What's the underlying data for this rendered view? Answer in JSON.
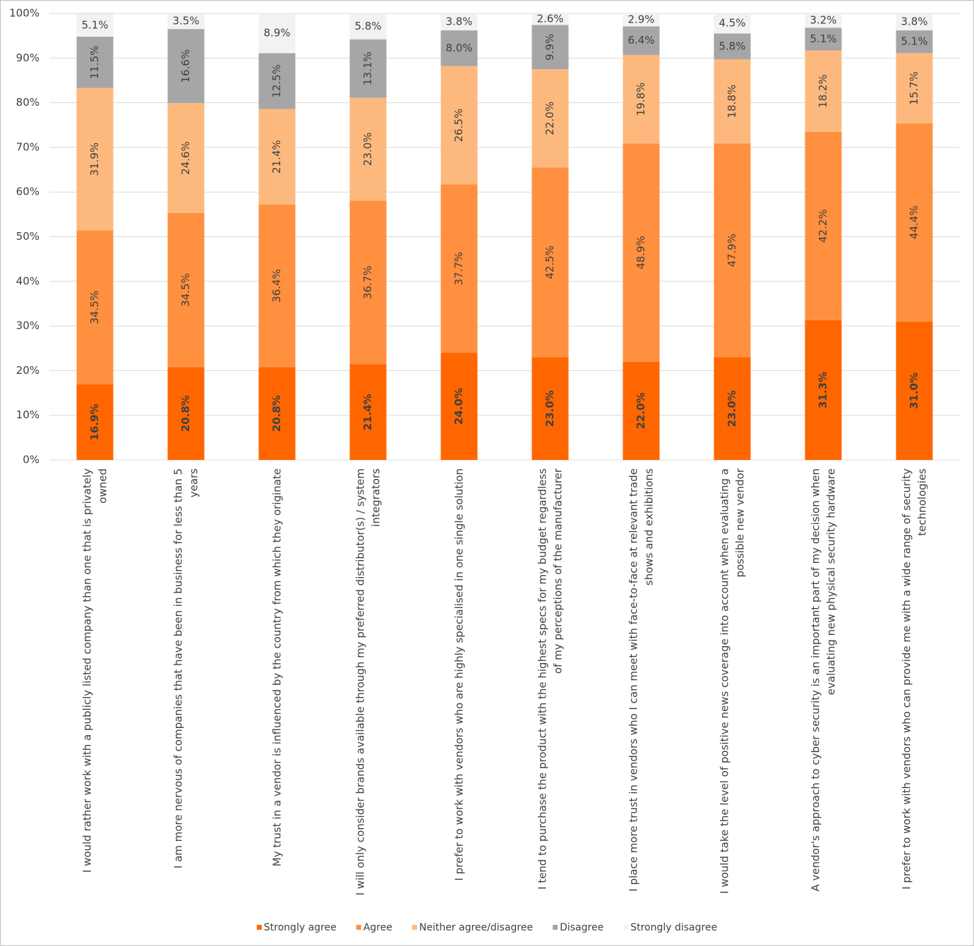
{
  "chart_data": {
    "type": "stacked_bar",
    "categories": [
      "I would rather work with a publicly listed company than one that is privately owned",
      "I am more nervous of companies that have been in business for less than 5 years",
      "My trust in a vendor is influenced by the country from which they originate",
      "I will only consider brands available through my preferred distributor(s) / system integrators",
      "I prefer to work with vendors who are highly specialised in one single solution",
      "I tend to purchase the product with the highest specs for my budget regardless of my perceptions of the manufacturer",
      "I place more trust in vendors who I can meet with face-to-face at relevant trade shows and exhibitions",
      "I would take the level of positive news coverage into account when evaluating a possible new vendor",
      "A vendor's approach to cyber security is an important part of my decision when evaluating new physical security hardware",
      "I prefer to work with vendors who can provide me with a wide range of security technologies"
    ],
    "series": [
      {
        "name": "Strongly agree",
        "color": "#ff6600",
        "values": [
          16.9,
          20.8,
          20.8,
          21.4,
          24.0,
          23.0,
          22.0,
          23.0,
          31.3,
          31.0
        ],
        "value_labels": [
          "16.9%",
          "20.8%",
          "20.8%",
          "21.4%",
          "24.0%",
          "23.0%",
          "22.0%",
          "23.0%",
          "31.3%",
          "31.0%"
        ]
      },
      {
        "name": "Agree",
        "color": "#ff9040",
        "values": [
          34.5,
          34.5,
          36.4,
          36.7,
          37.7,
          42.5,
          48.9,
          47.9,
          42.2,
          44.4
        ],
        "value_labels": [
          "34.5%",
          "34.5%",
          "36.4%",
          "36.7%",
          "37.7%",
          "42.5%",
          "48.9%",
          "47.9%",
          "42.2%",
          "44.4%"
        ]
      },
      {
        "name": "Neither agree/disagree",
        "color": "#fdb97d",
        "values": [
          31.9,
          24.6,
          21.4,
          23.0,
          26.5,
          22.0,
          19.8,
          18.8,
          18.2,
          15.7
        ],
        "value_labels": [
          "31.9%",
          "24.6%",
          "21.4%",
          "23.0%",
          "26.5%",
          "22.0%",
          "19.8%",
          "18.8%",
          "18.2%",
          "15.7%"
        ]
      },
      {
        "name": "Disagree",
        "color": "#a6a6a6",
        "values": [
          11.5,
          16.6,
          12.5,
          13.1,
          8.0,
          9.9,
          6.4,
          5.8,
          5.1,
          5.1
        ],
        "value_labels": [
          "11.5%",
          "16.6%",
          "12.5%",
          "13.1%",
          "8.0%",
          "9.9%",
          "6.4%",
          "5.8%",
          "5.1%",
          "5.1%"
        ]
      },
      {
        "name": "Strongly disagree",
        "color": "#f2f2f2",
        "values": [
          5.1,
          3.5,
          8.9,
          5.8,
          3.8,
          2.6,
          2.9,
          4.5,
          3.2,
          3.8
        ],
        "value_labels": [
          "5.1%",
          "3.5%",
          "8.9%",
          "5.8%",
          "3.8%",
          "2.6%",
          "2.9%",
          "4.5%",
          "3.2%",
          "3.8%"
        ]
      }
    ],
    "ylim": [
      0,
      100
    ],
    "yticks": [
      {
        "value": 0,
        "label": "0%"
      },
      {
        "value": 10,
        "label": "10%"
      },
      {
        "value": 20,
        "label": "20%"
      },
      {
        "value": 30,
        "label": "30%"
      },
      {
        "value": 40,
        "label": "40%"
      },
      {
        "value": 50,
        "label": "50%"
      },
      {
        "value": 60,
        "label": "60%"
      },
      {
        "value": 70,
        "label": "70%"
      },
      {
        "value": 80,
        "label": "80%"
      },
      {
        "value": 90,
        "label": "90%"
      },
      {
        "value": 100,
        "label": "100%"
      }
    ],
    "grid": true,
    "legend": "bottom"
  }
}
